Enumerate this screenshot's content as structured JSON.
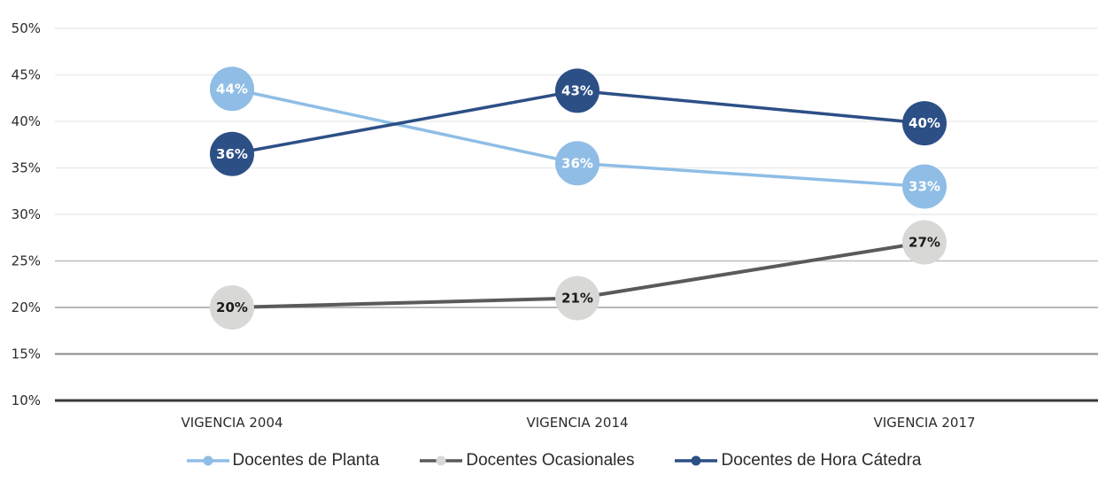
{
  "chart_data": {
    "type": "line",
    "categories": [
      "VIGENCIA 2004",
      "VIGENCIA 2014",
      "VIGENCIA 2017"
    ],
    "y_ticks": [
      "10%",
      "15%",
      "20%",
      "25%",
      "30%",
      "35%",
      "40%",
      "45%",
      "50%"
    ],
    "ylim": [
      10,
      50
    ],
    "legend_position": "bottom",
    "series": [
      {
        "name": "Docentes de Planta",
        "values": [
          43.5,
          35.5,
          33
        ],
        "labels": [
          "44%",
          "36%",
          "33%"
        ],
        "line_color": "#8fbde6",
        "marker_color": "#8fbde6",
        "label_color": "#ffffff"
      },
      {
        "name": "Docentes Ocasionales",
        "values": [
          20,
          21,
          27
        ],
        "labels": [
          "20%",
          "21%",
          "27%"
        ],
        "line_color": "#5a5a5a",
        "marker_color": "#d8d8d6",
        "label_color": "#1a1a1a"
      },
      {
        "name": "Docentes de Hora Cátedra",
        "values": [
          36.5,
          43.3,
          39.8
        ],
        "labels": [
          "36%",
          "43%",
          "40%"
        ],
        "line_color": "#2c4f86",
        "marker_color": "#2c4f86",
        "label_color": "#ffffff"
      }
    ]
  }
}
